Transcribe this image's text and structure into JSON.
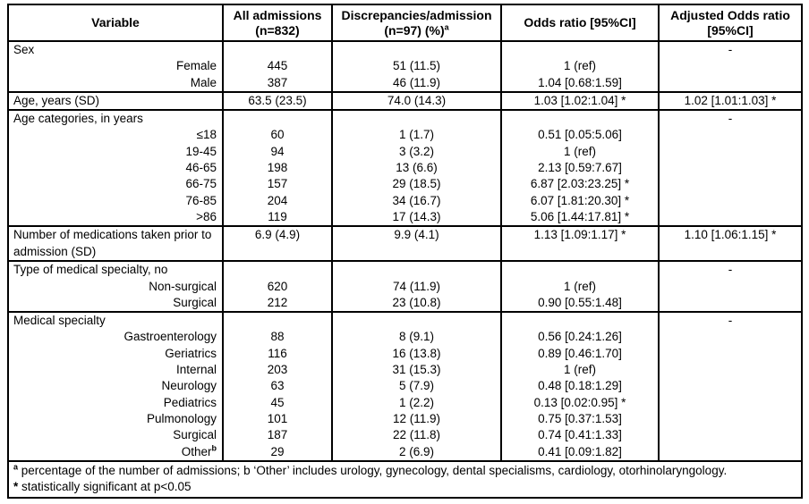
{
  "colors": {
    "border": "#000000",
    "text": "#000000",
    "background": "#ffffff"
  },
  "header": {
    "variable": "Variable",
    "all_admissions_1": "All admissions",
    "all_admissions_2": "(n=832)",
    "discrepancies_1": "Discrepancies/admission",
    "discrepancies_2": "(n=97) (%)",
    "discrepancies_sup": "a",
    "odds_ratio": "Odds ratio [95%CI]",
    "adjusted_1": "Adjusted Odds ratio",
    "adjusted_2": "[95%CI]"
  },
  "rows": [
    {
      "label": "Sex",
      "type": "group",
      "aor": "-"
    },
    {
      "label": "Female",
      "type": "sub",
      "all": "445",
      "disc": "51 (11.5)",
      "or": "1 (ref)"
    },
    {
      "label": "Male",
      "type": "sub",
      "all": "387",
      "disc": "46 (11.9)",
      "or": "1.04 [0.68:1.59]"
    },
    {
      "label": "Age, years (SD)",
      "type": "data",
      "all": "63.5 (23.5)",
      "disc": "74.0 (14.3)",
      "or": "1.03 [1.02:1.04] *",
      "aor": "1.02 [1.01:1.03] *"
    },
    {
      "label": "Age categories, in years",
      "type": "group",
      "aor": "-"
    },
    {
      "label": "≤18",
      "type": "sub",
      "all": "60",
      "disc": "1 (1.7)",
      "or": "0.51 [0.05:5.06]"
    },
    {
      "label": "19-45",
      "type": "sub",
      "all": "94",
      "disc": "3 (3.2)",
      "or": "1 (ref)"
    },
    {
      "label": "46-65",
      "type": "sub",
      "all": "198",
      "disc": "13 (6.6)",
      "or": "2.13 [0.59:7.67]"
    },
    {
      "label": "66-75",
      "type": "sub",
      "all": "157",
      "disc": "29 (18.5)",
      "or": "6.87 [2.03:23.25] *"
    },
    {
      "label": "76-85",
      "type": "sub",
      "all": "204",
      "disc": "34 (16.7)",
      "or": "6.07 [1.81:20.30] *"
    },
    {
      "label": ">86",
      "type": "sub",
      "all": "119",
      "disc": "17 (14.3)",
      "or": "5.06 [1.44:17.81] *"
    },
    {
      "label": "Number of medications taken prior to admission (SD)",
      "type": "data2",
      "all": "6.9 (4.9)",
      "disc": "9.9 (4.1)",
      "or": "1.13 [1.09:1.17] *",
      "aor": "1.10 [1.06:1.15] *"
    },
    {
      "label": "Type of medical specialty, no",
      "type": "group",
      "aor": "-"
    },
    {
      "label": "Non-surgical",
      "type": "sub",
      "all": "620",
      "disc": "74 (11.9)",
      "or": "1 (ref)"
    },
    {
      "label": "Surgical",
      "type": "sub",
      "all": "212",
      "disc": "23 (10.8)",
      "or": "0.90 [0.55:1.48]"
    },
    {
      "label": "Medical specialty",
      "type": "group",
      "aor": "-"
    },
    {
      "label": "Gastroenterology",
      "type": "sub",
      "all": "88",
      "disc": "8 (9.1)",
      "or": "0.56 [0.24:1.26]"
    },
    {
      "label": "Geriatrics",
      "type": "sub",
      "all": "116",
      "disc": "16 (13.8)",
      "or": "0.89 [0.46:1.70]"
    },
    {
      "label": "Internal",
      "type": "sub",
      "all": "203",
      "disc": "31 (15.3)",
      "or": "1 (ref)"
    },
    {
      "label": "Neurology",
      "type": "sub",
      "all": "63",
      "disc": "5 (7.9)",
      "or": "0.48 [0.18:1.29]"
    },
    {
      "label": "Pediatrics",
      "type": "sub",
      "all": "45",
      "disc": "1 (2.2)",
      "or": "0.13 [0.02:0.95] *"
    },
    {
      "label": "Pulmonology",
      "type": "sub",
      "all": "101",
      "disc": "12 (11.9)",
      "or": "0.75 [0.37:1.53]"
    },
    {
      "label": "Surgical",
      "type": "sub",
      "all": "187",
      "disc": "22 (11.8)",
      "or": "0.74 [0.41:1.33]"
    },
    {
      "label": "Other",
      "label_sup": "b",
      "type": "sub",
      "all": "29",
      "disc": "2 (6.9)",
      "or": "0.41 [0.09:1.82]"
    }
  ],
  "footnotes": {
    "sup_a": "a",
    "line1": " percentage of the number of admissions; b ‘Other’ includes urology, gynecology, dental specialisms, cardiology, otorhinolaryngology.",
    "star": "*",
    "line2": " statistically significant at p<0.05"
  }
}
